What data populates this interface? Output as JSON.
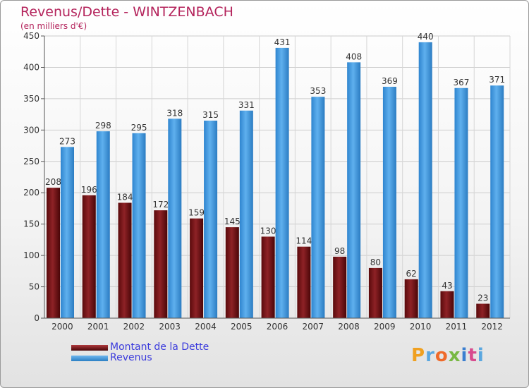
{
  "header": {
    "title": "Revenus/Dette - WINTZENBACH",
    "subtitle": "(en milliers d'€)"
  },
  "logo": {
    "text": "Proxiti"
  },
  "colors": {
    "debt": "#6b0d10",
    "revenue": "#3d97dd",
    "title": "#b4245c",
    "legend_text": "#3b3bdc"
  },
  "chart_data": {
    "type": "bar",
    "title": "Revenus/Dette - WINTZENBACH",
    "subtitle": "(en milliers d'€)",
    "categories": [
      "2000",
      "2001",
      "2002",
      "2003",
      "2004",
      "2005",
      "2006",
      "2007",
      "2008",
      "2009",
      "2010",
      "2011",
      "2012"
    ],
    "series": [
      {
        "name": "Montant de la Dette",
        "color": "#6b0d10",
        "values": [
          208,
          196,
          184,
          172,
          159,
          145,
          130,
          114,
          98,
          80,
          62,
          43,
          23
        ]
      },
      {
        "name": "Revenus",
        "color": "#3d97dd",
        "values": [
          273,
          298,
          295,
          318,
          315,
          331,
          431,
          353,
          408,
          369,
          440,
          367,
          371
        ]
      }
    ],
    "ylim": [
      0,
      450
    ],
    "yticks": [
      0,
      50,
      100,
      150,
      200,
      250,
      300,
      350,
      400,
      450
    ],
    "grid": true,
    "legend_position": "bottom-left"
  }
}
